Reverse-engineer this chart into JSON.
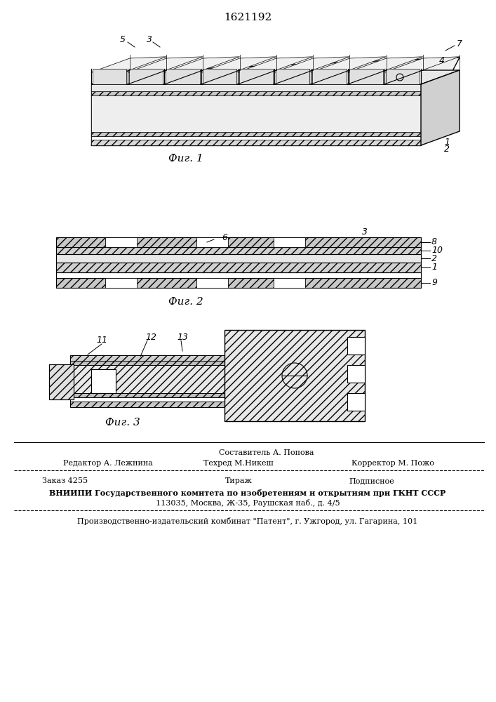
{
  "patent_number": "1621192",
  "background_color": "#ffffff",
  "fig_width": 7.07,
  "fig_height": 10.0,
  "dpi": 100,
  "footer": {
    "line1_left": "Редактор А. Лежнина",
    "line1_center": "Техред М.Никеш",
    "line1_center_top": "Составитель А. Попова",
    "line1_right": "Корректор М. Пожо",
    "line2_left": "Заказ 4255",
    "line2_center": "Тираж",
    "line2_right": "Подписное",
    "line3": "ВНИИПИ Государственного комитета по изобретениям и открытиям при ГКНТ СССР",
    "line4": "113035, Москва, Ж-35, Раушская наб., д. 4/5",
    "line5": "Производственно-издательский комбинат \"Патент\", г. Ужгород, ул. Гагарина, 101"
  },
  "fig_labels": [
    "Фиг. 1",
    "Фиг. 2",
    "Фиг. 3"
  ]
}
